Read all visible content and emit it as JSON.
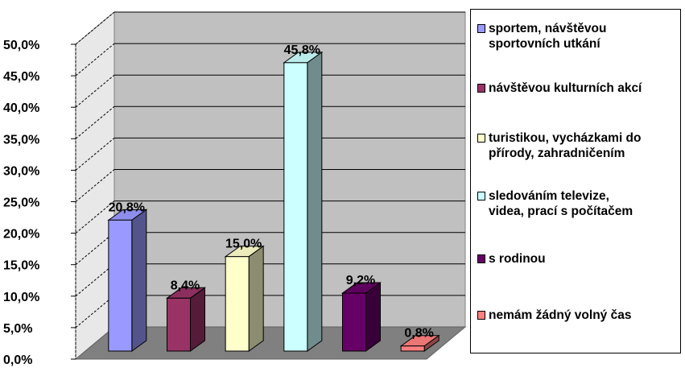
{
  "chart_data": {
    "type": "bar",
    "title": "",
    "xlabel": "",
    "ylabel": "",
    "ylim": [
      0,
      50
    ],
    "y_ticks": [
      "0,0%",
      "5,0%",
      "10,0%",
      "15,0%",
      "20,0%",
      "25,0%",
      "30,0%",
      "35,0%",
      "40,0%",
      "45,0%",
      "50,0%"
    ],
    "three_d": true,
    "grid": true,
    "legend_position": "right",
    "series": [
      {
        "name": "sportem, návštěvou\nsportovních utkání",
        "value": 20.8,
        "label": "20,8%",
        "color": "#9999ff"
      },
      {
        "name": "návštěvou kulturních akcí",
        "value": 8.4,
        "label": "8,4%",
        "color": "#993366"
      },
      {
        "name": "turistikou, vycházkami do\npřírody, zahradničením",
        "value": 15.0,
        "label": "15,0%",
        "color": "#ffffcc"
      },
      {
        "name": "sledováním televize,\nvidea, prací s počítačem",
        "value": 45.8,
        "label": "45,8%",
        "color": "#ccffff"
      },
      {
        "name": "s rodinou",
        "value": 9.2,
        "label": "9,2%",
        "color": "#660066"
      },
      {
        "name": "nemám žádný volný čas",
        "value": 0.8,
        "label": "0,8%",
        "color": "#ff8080"
      }
    ]
  }
}
